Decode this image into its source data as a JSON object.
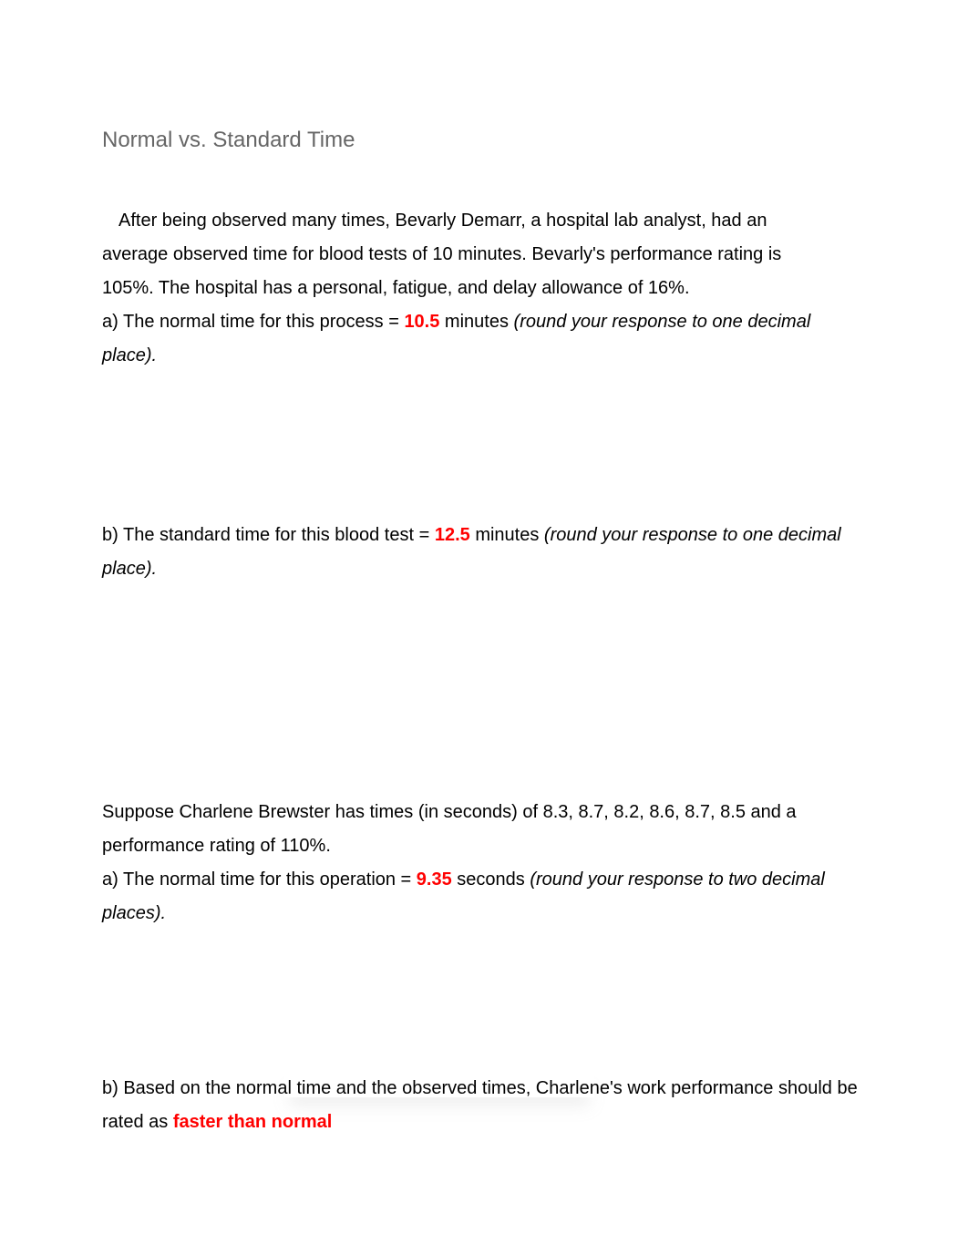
{
  "colors": {
    "title": "#666666",
    "body_text": "#000000",
    "answer": "#ff0000",
    "background": "#ffffff"
  },
  "typography": {
    "title_fontsize": 24,
    "body_fontsize": 20,
    "line_height": 1.85,
    "font_family": "Arial"
  },
  "title": "Normal vs. Standard Time",
  "problem1": {
    "intro_line1": "After being observed many times, Bevarly Demarr, a hospital lab analyst, had an",
    "intro_line2": "average observed time for blood tests of 10 minutes. Bevarly's performance rating is",
    "intro_line3": "105%. The hospital has a personal, fatigue, and delay allowance of 16%.",
    "a_prefix": "a)  The normal time for this process = ",
    "a_answer": "10.5",
    "a_suffix": " minutes ",
    "a_hint": "(round your response to one decimal place).",
    "b_prefix": "b) The standard time for this blood test = ",
    "b_answer": "12.5",
    "b_suffix": " minutes ",
    "b_hint": "(round your response to one decimal place)."
  },
  "problem2": {
    "intro": "Suppose Charlene Brewster has times (in seconds) of 8.3, 8.7, 8.2, 8.6, 8.7, 8.5 and a performance rating of 110%.",
    "a_prefix": "a) The normal time for this operation = ",
    "a_answer": "9.35",
    "a_suffix": " seconds ",
    "a_hint": "(round your response to two decimal places).",
    "b_prefix": "b) Based on the normal time and the observed times, Charlene's work performance should be rated as ",
    "b_answer": "faster than normal"
  }
}
